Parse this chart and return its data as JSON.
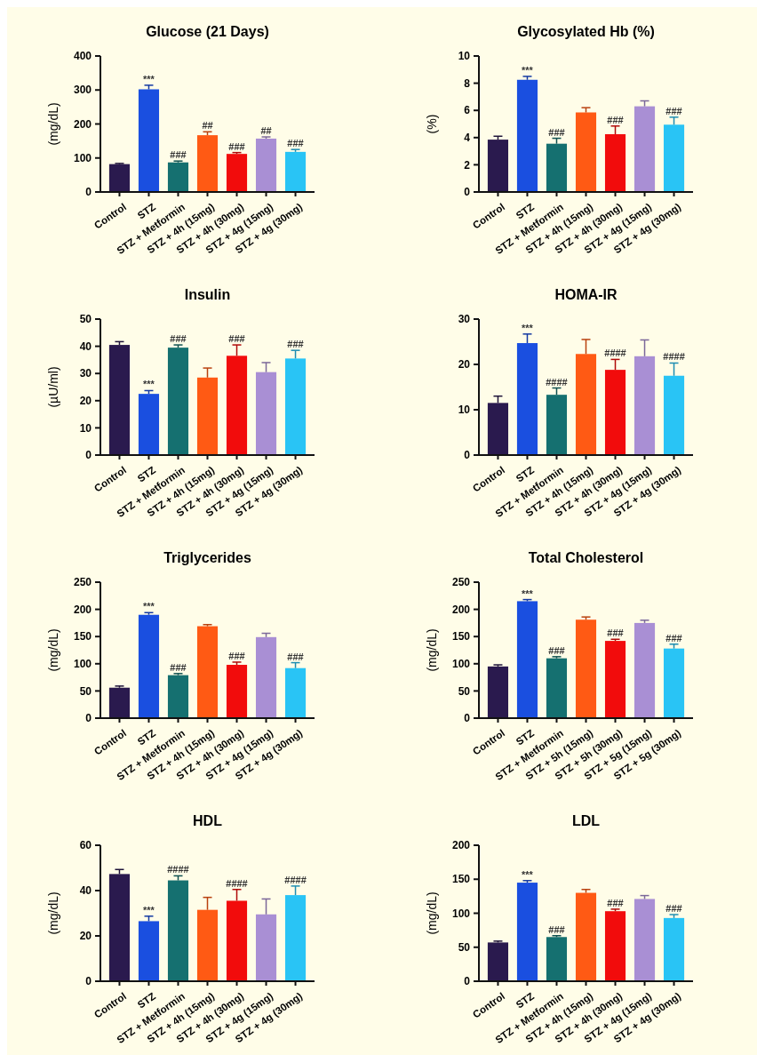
{
  "chart_data": [
    {
      "type": "bar",
      "title": "Glucose (21 Days)",
      "ylabel": "(mg/dL)",
      "categories": [
        "Control",
        "STZ",
        "STZ + Metformin",
        "STZ + 4h (15mg)",
        "STZ + 4h (30mg)",
        "STZ + 4g (15mg)",
        "STZ + 4g (30mg)"
      ],
      "values": [
        82,
        302,
        87,
        167,
        112,
        157,
        118
      ],
      "errors": [
        2,
        12,
        4,
        10,
        4,
        5,
        7
      ],
      "colors": [
        "#2a1a4e",
        "#1a4fe0",
        "#157070",
        "#ff5a14",
        "#f20c0c",
        "#a98fd4",
        "#29c4f5"
      ],
      "ylim": [
        0,
        400
      ],
      "yticks": [
        0,
        100,
        200,
        300,
        400
      ],
      "annotations": [
        {
          "text": "***",
          "x": "STZ",
          "y": 314
        },
        {
          "text": "###",
          "x": "STZ + Metformin",
          "y": 91
        },
        {
          "text": "##",
          "x": "STZ + 4h (15mg)",
          "y": 177
        },
        {
          "text": "###",
          "x": "STZ + 4h (30mg)",
          "y": 116
        },
        {
          "text": "##",
          "x": "STZ + 4g (15mg)",
          "y": 162
        },
        {
          "text": "###",
          "x": "STZ + 4g (30mg)",
          "y": 125
        }
      ]
    },
    {
      "type": "bar",
      "title": "Glycosylated Hb (%)",
      "ylabel": "(%)",
      "categories": [
        "Control",
        "STZ",
        "STZ + Metformin",
        "STZ + 4h (15mg)",
        "STZ + 4h (30mg)",
        "STZ + 4g (15mg)",
        "STZ + 4g (30mg)"
      ],
      "values": [
        3.85,
        8.25,
        3.55,
        5.85,
        4.25,
        6.3,
        4.95
      ],
      "errors": [
        0.25,
        0.25,
        0.4,
        0.35,
        0.6,
        0.4,
        0.55
      ],
      "colors": [
        "#2a1a4e",
        "#1a4fe0",
        "#157070",
        "#ff5a14",
        "#f20c0c",
        "#a98fd4",
        "#29c4f5"
      ],
      "ylim": [
        0,
        10
      ],
      "yticks": [
        0,
        2,
        4,
        6,
        8,
        10
      ],
      "annotations": [
        {
          "text": "***",
          "x": "STZ",
          "y": 8.5
        },
        {
          "text": "###",
          "x": "STZ + Metformin",
          "y": 3.95
        },
        {
          "text": "###",
          "x": "STZ + 4h (30mg)",
          "y": 4.85
        },
        {
          "text": "###",
          "x": "STZ + 4g (30mg)",
          "y": 5.5
        }
      ]
    },
    {
      "type": "bar",
      "title": "Insulin",
      "ylabel": "(µU/ml)",
      "categories": [
        "Control",
        "STZ",
        "STZ + Metformin",
        "STZ + 4h (15mg)",
        "STZ + 4h (30mg)",
        "STZ + 4g (15mg)",
        "STZ + 4g (30mg)"
      ],
      "values": [
        40.5,
        22.5,
        39.5,
        28.5,
        36.5,
        30.5,
        35.5
      ],
      "errors": [
        1.2,
        1.2,
        1,
        3.5,
        4,
        3.5,
        3
      ],
      "colors": [
        "#2a1a4e",
        "#1a4fe0",
        "#157070",
        "#ff5a14",
        "#f20c0c",
        "#a98fd4",
        "#29c4f5"
      ],
      "ylim": [
        0,
        50
      ],
      "yticks": [
        0,
        10,
        20,
        30,
        40,
        50
      ],
      "annotations": [
        {
          "text": "***",
          "x": "STZ",
          "y": 23.7
        },
        {
          "text": "###",
          "x": "STZ + Metformin",
          "y": 40.5
        },
        {
          "text": "###",
          "x": "STZ + 4h (30mg)",
          "y": 40.5
        },
        {
          "text": "###",
          "x": "STZ + 4g (30mg)",
          "y": 38.5
        }
      ]
    },
    {
      "type": "bar",
      "title": "HOMA-IR",
      "categories": [
        "Control",
        "STZ",
        "STZ + Metformin",
        "STZ + 4h (15mg)",
        "STZ + 4h (30mg)",
        "STZ + 4g (15mg)",
        "STZ + 4g (30mg)"
      ],
      "values": [
        11.5,
        24.7,
        13.3,
        22.3,
        18.8,
        21.8,
        17.5
      ],
      "errors": [
        1.5,
        2,
        1.5,
        3.2,
        2.3,
        3.6,
        2.8
      ],
      "colors": [
        "#2a1a4e",
        "#1a4fe0",
        "#157070",
        "#ff5a14",
        "#f20c0c",
        "#a98fd4",
        "#29c4f5"
      ],
      "ylim": [
        0,
        30
      ],
      "yticks": [
        0,
        10,
        20,
        30
      ],
      "annotations": [
        {
          "text": "***",
          "x": "STZ",
          "y": 26.7
        },
        {
          "text": "####",
          "x": "STZ + Metformin",
          "y": 14.8
        },
        {
          "text": "####",
          "x": "STZ + 4h (30mg)",
          "y": 21.1
        },
        {
          "text": "####",
          "x": "STZ + 4g (30mg)",
          "y": 20.3
        }
      ]
    },
    {
      "type": "bar",
      "title": "Triglycerides",
      "ylabel": "(mg/dL)",
      "categories": [
        "Control",
        "STZ",
        "STZ + Metformin",
        "STZ + 4h (15mg)",
        "STZ + 4h (30mg)",
        "STZ + 4g (15mg)",
        "STZ + 4g (30mg)"
      ],
      "values": [
        56,
        190,
        79,
        169,
        98,
        149,
        92
      ],
      "errors": [
        3,
        4,
        3,
        3,
        5,
        7,
        10
      ],
      "colors": [
        "#2a1a4e",
        "#1a4fe0",
        "#157070",
        "#ff5a14",
        "#f20c0c",
        "#a98fd4",
        "#29c4f5"
      ],
      "ylim": [
        0,
        250
      ],
      "yticks": [
        0,
        50,
        100,
        150,
        200,
        250
      ],
      "annotations": [
        {
          "text": "***",
          "x": "STZ",
          "y": 194
        },
        {
          "text": "###",
          "x": "STZ + Metformin",
          "y": 81
        },
        {
          "text": "###",
          "x": "STZ + 4h (30mg)",
          "y": 103
        },
        {
          "text": "###",
          "x": "STZ + 4g (30mg)",
          "y": 102
        }
      ]
    },
    {
      "type": "bar",
      "title": "Total Cholesterol",
      "ylabel": "(mg/dL)",
      "categories": [
        "Control",
        "STZ",
        "STZ + Metformin",
        "STZ + 5h (15mg)",
        "STZ + 5h (30mg)",
        "STZ + 5g (15mg)",
        "STZ + 5g (30mg)"
      ],
      "values": [
        95,
        215,
        110,
        181,
        142,
        175,
        128
      ],
      "errors": [
        3,
        3,
        3,
        5,
        3,
        5,
        8
      ],
      "colors": [
        "#2a1a4e",
        "#1a4fe0",
        "#157070",
        "#ff5a14",
        "#f20c0c",
        "#a98fd4",
        "#29c4f5"
      ],
      "ylim": [
        0,
        250
      ],
      "yticks": [
        0,
        50,
        100,
        150,
        200,
        250
      ],
      "annotations": [
        {
          "text": "***",
          "x": "STZ",
          "y": 218
        },
        {
          "text": "###",
          "x": "STZ + Metformin",
          "y": 112
        },
        {
          "text": "###",
          "x": "STZ + 5h (30mg)",
          "y": 145
        },
        {
          "text": "###",
          "x": "STZ + 5g (30mg)",
          "y": 136
        }
      ]
    },
    {
      "type": "bar",
      "title": "HDL",
      "ylabel": "(mg/dL)",
      "categories": [
        "Control",
        "STZ",
        "STZ + Metformin",
        "STZ + 4h (15mg)",
        "STZ + 4h (30mg)",
        "STZ + 4g (15mg)",
        "STZ + 4g (30mg)"
      ],
      "values": [
        47.3,
        26.5,
        44.5,
        31.5,
        35.5,
        29.5,
        38
      ],
      "errors": [
        2,
        2.2,
        2,
        5.5,
        5,
        6.8,
        4
      ],
      "colors": [
        "#2a1a4e",
        "#1a4fe0",
        "#157070",
        "#ff5a14",
        "#f20c0c",
        "#a98fd4",
        "#29c4f5"
      ],
      "ylim": [
        0,
        60
      ],
      "yticks": [
        0,
        20,
        40,
        60
      ],
      "annotations": [
        {
          "text": "***",
          "x": "STZ",
          "y": 28.7
        },
        {
          "text": "####",
          "x": "STZ + Metformin",
          "y": 46.5
        },
        {
          "text": "####",
          "x": "STZ + 4h (30mg)",
          "y": 40.5
        },
        {
          "text": "####",
          "x": "STZ + 4g (30mg)",
          "y": 42
        }
      ]
    },
    {
      "type": "bar",
      "title": "LDL",
      "ylabel": "(mg/dL)",
      "categories": [
        "Control",
        "STZ",
        "STZ + Metformin",
        "STZ + 4h (15mg)",
        "STZ + 4h (30mg)",
        "STZ + 4g (15mg)",
        "STZ + 4g (30mg)"
      ],
      "values": [
        57,
        145,
        65,
        130,
        103,
        121,
        93
      ],
      "errors": [
        2,
        3,
        2,
        5,
        3,
        5,
        5
      ],
      "colors": [
        "#2a1a4e",
        "#1a4fe0",
        "#157070",
        "#ff5a14",
        "#f20c0c",
        "#a98fd4",
        "#29c4f5"
      ],
      "ylim": [
        0,
        200
      ],
      "yticks": [
        0,
        50,
        100,
        150,
        200
      ],
      "annotations": [
        {
          "text": "***",
          "x": "STZ",
          "y": 148
        },
        {
          "text": "###",
          "x": "STZ + Metformin",
          "y": 67
        },
        {
          "text": "###",
          "x": "STZ + 4h (30mg)",
          "y": 106
        },
        {
          "text": "###",
          "x": "STZ + 4g (30mg)",
          "y": 98
        }
      ]
    }
  ]
}
